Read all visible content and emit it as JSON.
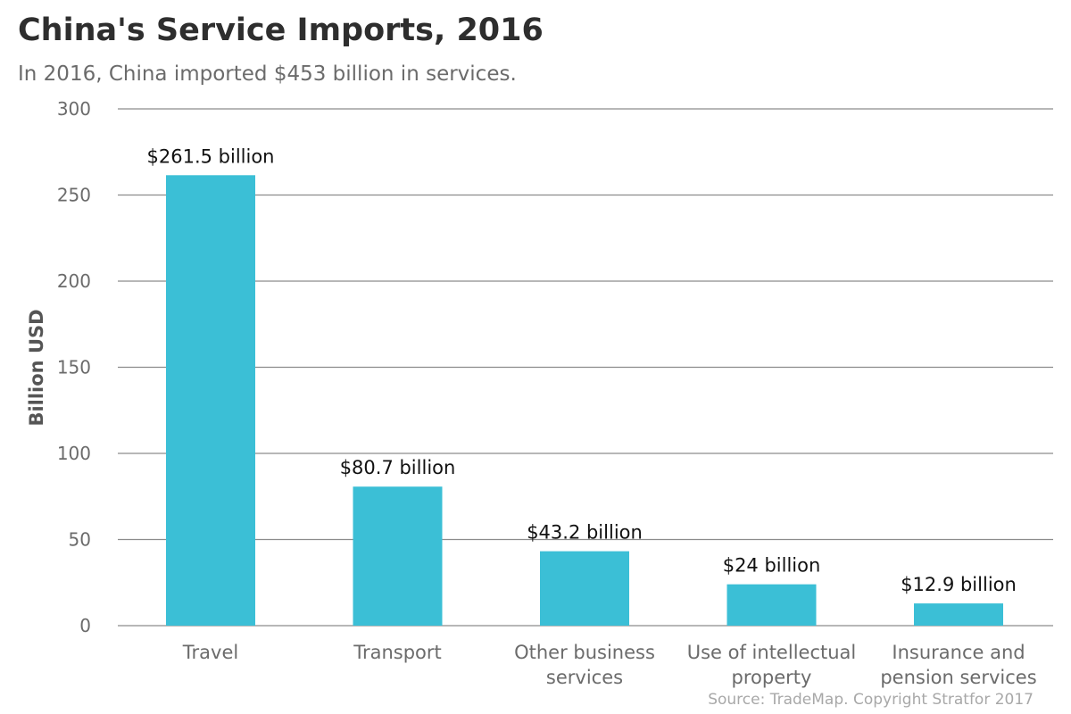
{
  "title": "China's Service Imports, 2016",
  "subtitle": "In 2016, China imported $453 billion in services.",
  "source": "Source: TradeMap. Copyright Stratfor 2017",
  "colors": {
    "bar": "#3bbfd6",
    "grid": "#8c8c8c",
    "title": "#2e2e2e",
    "muted": "#6b6b6b"
  },
  "chart_data": {
    "type": "bar",
    "categories": [
      [
        "Travel"
      ],
      [
        "Transport"
      ],
      [
        "Other business",
        "services"
      ],
      [
        "Use of intellectual",
        "property"
      ],
      [
        "Insurance and",
        "pension services"
      ]
    ],
    "values": [
      261.5,
      80.7,
      43.2,
      24,
      12.9
    ],
    "data_labels": [
      "$261.5 billion",
      "$80.7 billion",
      "$43.2 billion",
      "$24 billion",
      "$12.9 billion"
    ],
    "ylabel": "Billion USD",
    "xlabel": "",
    "ylim": [
      0,
      300
    ],
    "yticks": [
      0,
      50,
      100,
      150,
      200,
      250,
      300
    ],
    "grid": true,
    "legend": "none"
  }
}
